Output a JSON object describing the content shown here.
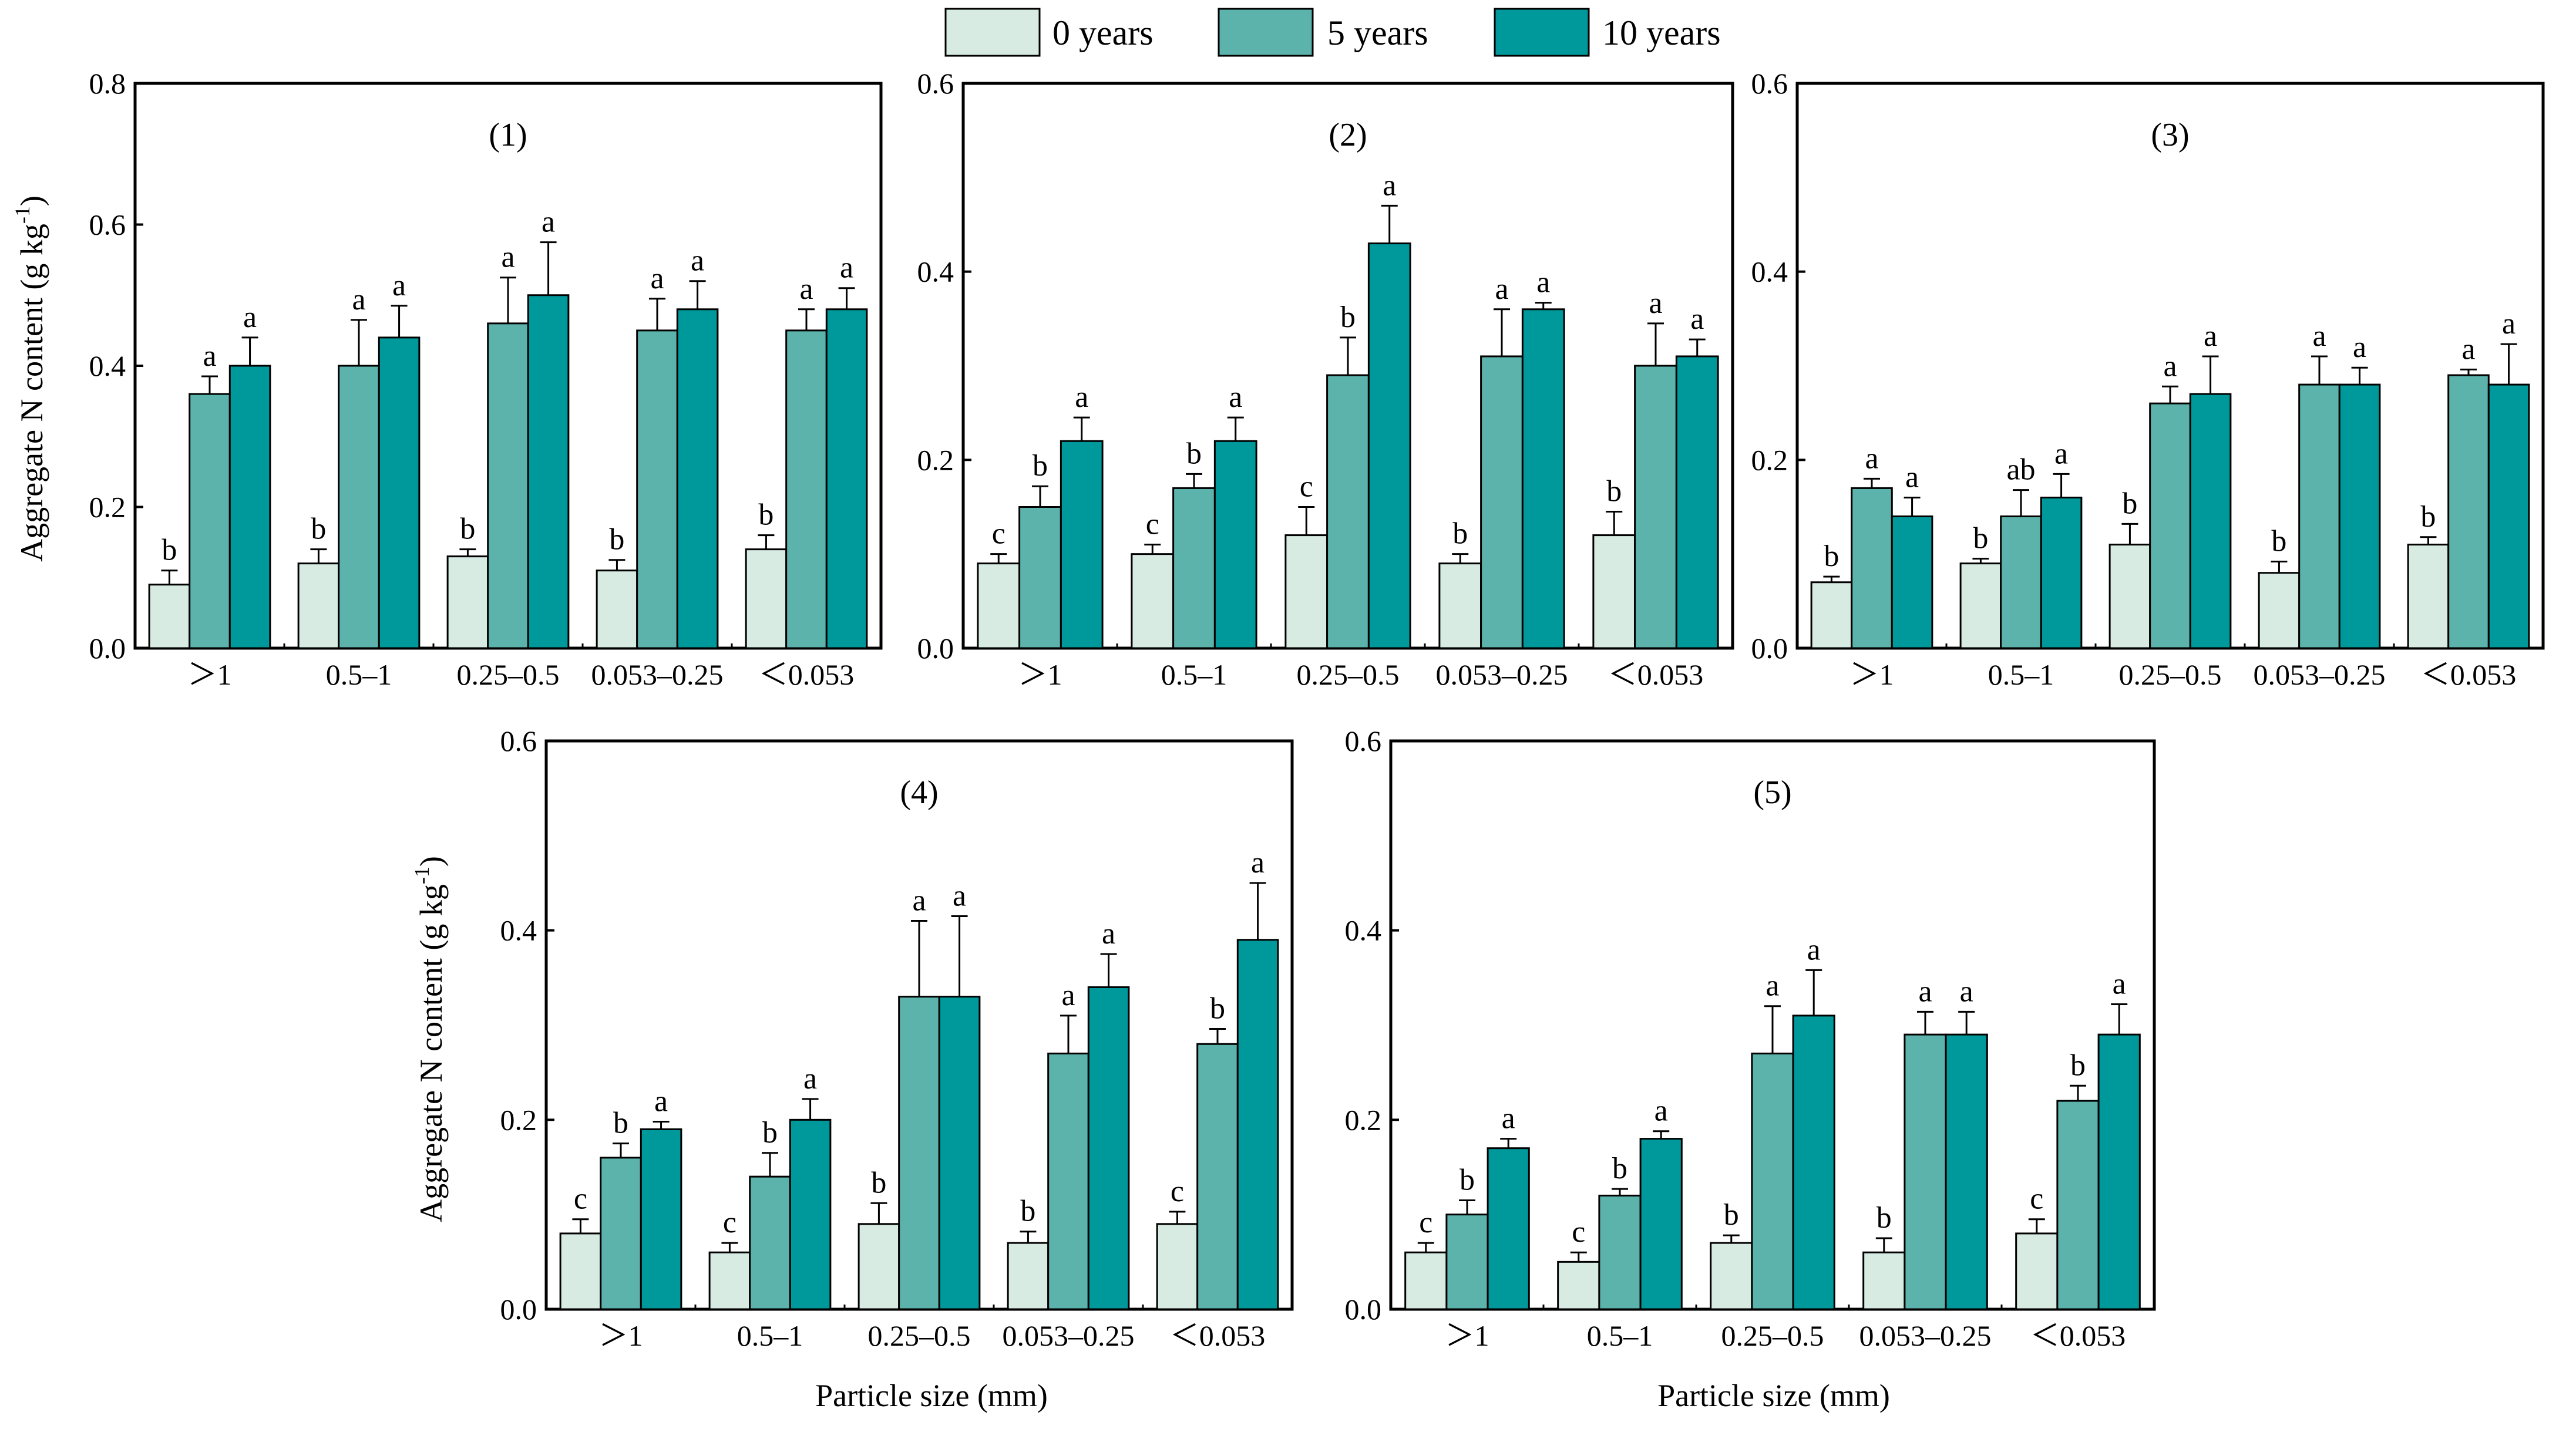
{
  "legend": [
    {
      "name": "0 years",
      "color": "#d7ebe3"
    },
    {
      "name": "5 years",
      "color": "#5cb3ac"
    },
    {
      "name": "10 years",
      "color": "#00999b"
    }
  ],
  "colors": {
    "edge": "#000000",
    "background": "#ffffff"
  },
  "ylabel_main": "Aggregate N content  (g kg",
  "ylabel_sup": "-1",
  "ylabel_close": ")",
  "xlabel": "Particle size (mm)",
  "chart_data": [
    {
      "type": "bar",
      "title": "(1)",
      "categories": [
        ">1",
        "0.5–1",
        "0.25–0.5",
        "0.053–0.25",
        "<0.053"
      ],
      "category_labels": [
        "＞1",
        "0.5–1",
        "0.25–0.5",
        "0.053–0.25",
        "＜0.053"
      ],
      "ylim": [
        0,
        0.8
      ],
      "yticks": [
        "0.0",
        "0.2",
        "0.4",
        "0.6",
        "0.8"
      ],
      "series": [
        {
          "name": "0 years",
          "values": [
            0.09,
            0.12,
            0.13,
            0.11,
            0.14
          ],
          "errors": [
            0.02,
            0.02,
            0.01,
            0.015,
            0.02
          ],
          "labels": [
            "b",
            "b",
            "b",
            "b",
            "b"
          ]
        },
        {
          "name": "5 years",
          "values": [
            0.36,
            0.4,
            0.46,
            0.45,
            0.45
          ],
          "errors": [
            0.025,
            0.065,
            0.065,
            0.045,
            0.03
          ],
          "labels": [
            "a",
            "a",
            "a",
            "a",
            "a"
          ]
        },
        {
          "name": "10 years",
          "values": [
            0.4,
            0.44,
            0.5,
            0.48,
            0.48
          ],
          "errors": [
            0.04,
            0.045,
            0.075,
            0.04,
            0.03
          ],
          "labels": [
            "a",
            "a",
            "a",
            "a",
            "a"
          ]
        }
      ]
    },
    {
      "type": "bar",
      "title": "(2)",
      "categories": [
        ">1",
        "0.5–1",
        "0.25–0.5",
        "0.053–0.25",
        "<0.053"
      ],
      "category_labels": [
        "＞1",
        "0.5–1",
        "0.25–0.5",
        "0.053–0.25",
        "＜0.053"
      ],
      "ylim": [
        0,
        0.6
      ],
      "yticks": [
        "0.0",
        "0.2",
        "0.4",
        "0.6"
      ],
      "series": [
        {
          "name": "0 years",
          "values": [
            0.09,
            0.1,
            0.12,
            0.09,
            0.12
          ],
          "errors": [
            0.01,
            0.01,
            0.03,
            0.01,
            0.025
          ],
          "labels": [
            "c",
            "c",
            "c",
            "b",
            "b"
          ]
        },
        {
          "name": "5 years",
          "values": [
            0.15,
            0.17,
            0.29,
            0.31,
            0.3
          ],
          "errors": [
            0.022,
            0.015,
            0.04,
            0.05,
            0.045
          ],
          "labels": [
            "b",
            "b",
            "b",
            "a",
            "a"
          ]
        },
        {
          "name": "10 years",
          "values": [
            0.22,
            0.22,
            0.43,
            0.36,
            0.31
          ],
          "errors": [
            0.025,
            0.025,
            0.04,
            0.007,
            0.018
          ],
          "labels": [
            "a",
            "a",
            "a",
            "a",
            "a"
          ]
        }
      ]
    },
    {
      "type": "bar",
      "title": "(3)",
      "categories": [
        ">1",
        "0.5–1",
        "0.25–0.5",
        "0.053–0.25",
        "<0.053"
      ],
      "category_labels": [
        "＞1",
        "0.5–1",
        "0.25–0.5",
        "0.053–0.25",
        "＜0.053"
      ],
      "ylim": [
        0,
        0.6
      ],
      "yticks": [
        "0.0",
        "0.2",
        "0.4",
        "0.6"
      ],
      "series": [
        {
          "name": "0 years",
          "values": [
            0.07,
            0.09,
            0.11,
            0.08,
            0.11
          ],
          "errors": [
            0.006,
            0.005,
            0.022,
            0.012,
            0.008
          ],
          "labels": [
            "b",
            "b",
            "b",
            "b",
            "b"
          ]
        },
        {
          "name": "5 years",
          "values": [
            0.17,
            0.14,
            0.26,
            0.28,
            0.29
          ],
          "errors": [
            0.01,
            0.028,
            0.018,
            0.03,
            0.006
          ],
          "labels": [
            "a",
            "ab",
            "a",
            "a",
            "a"
          ]
        },
        {
          "name": "10 years",
          "values": [
            0.14,
            0.16,
            0.27,
            0.28,
            0.28
          ],
          "errors": [
            0.02,
            0.025,
            0.04,
            0.018,
            0.043
          ],
          "labels": [
            "a",
            "a",
            "a",
            "a",
            "a"
          ]
        }
      ]
    },
    {
      "type": "bar",
      "title": "(4)",
      "categories": [
        ">1",
        "0.5–1",
        "0.25–0.5",
        "0.053–0.25",
        "<0.053"
      ],
      "category_labels": [
        "＞1",
        "0.5–1",
        "0.25–0.5",
        "0.053–0.25",
        "＜0.053"
      ],
      "ylim": [
        0,
        0.6
      ],
      "yticks": [
        "0.0",
        "0.2",
        "0.4",
        "0.6"
      ],
      "series": [
        {
          "name": "0 years",
          "values": [
            0.08,
            0.06,
            0.09,
            0.07,
            0.09
          ],
          "errors": [
            0.015,
            0.01,
            0.022,
            0.012,
            0.013
          ],
          "labels": [
            "c",
            "c",
            "b",
            "b",
            "c"
          ]
        },
        {
          "name": "5 years",
          "values": [
            0.16,
            0.14,
            0.33,
            0.27,
            0.28
          ],
          "errors": [
            0.015,
            0.025,
            0.08,
            0.04,
            0.016
          ],
          "labels": [
            "b",
            "b",
            "a",
            "a",
            "b"
          ]
        },
        {
          "name": "10 years",
          "values": [
            0.19,
            0.2,
            0.33,
            0.34,
            0.39
          ],
          "errors": [
            0.008,
            0.022,
            0.085,
            0.035,
            0.06
          ],
          "labels": [
            "a",
            "a",
            "a",
            "a",
            "a"
          ]
        }
      ]
    },
    {
      "type": "bar",
      "title": "(5)",
      "categories": [
        ">1",
        "0.5–1",
        "0.25–0.5",
        "0.053–0.25",
        "<0.053"
      ],
      "category_labels": [
        "＞1",
        "0.5–1",
        "0.25–0.5",
        "0.053–0.25",
        "＜0.053"
      ],
      "ylim": [
        0,
        0.6
      ],
      "yticks": [
        "0.0",
        "0.2",
        "0.4",
        "0.6"
      ],
      "series": [
        {
          "name": "0 years",
          "values": [
            0.06,
            0.05,
            0.07,
            0.06,
            0.08
          ],
          "errors": [
            0.01,
            0.01,
            0.008,
            0.015,
            0.015
          ],
          "labels": [
            "c",
            "c",
            "b",
            "b",
            "c"
          ]
        },
        {
          "name": "5 years",
          "values": [
            0.1,
            0.12,
            0.27,
            0.29,
            0.22
          ],
          "errors": [
            0.015,
            0.007,
            0.05,
            0.024,
            0.016
          ],
          "labels": [
            "b",
            "b",
            "a",
            "a",
            "b"
          ]
        },
        {
          "name": "10 years",
          "values": [
            0.17,
            0.18,
            0.31,
            0.29,
            0.29
          ],
          "errors": [
            0.01,
            0.008,
            0.048,
            0.024,
            0.032
          ],
          "labels": [
            "a",
            "a",
            "a",
            "a",
            "a"
          ]
        }
      ]
    }
  ]
}
